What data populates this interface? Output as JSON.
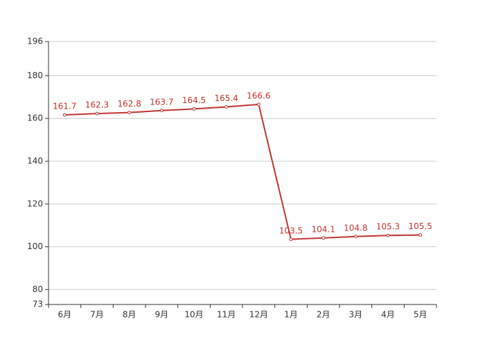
{
  "chart_data": {
    "type": "line",
    "categories": [
      "6月",
      "7月",
      "8月",
      "9月",
      "10月",
      "11月",
      "12月",
      "1月",
      "2月",
      "3月",
      "4月",
      "5月"
    ],
    "values": [
      161.7,
      162.3,
      162.8,
      163.7,
      164.5,
      165.4,
      166.6,
      103.5,
      104.1,
      104.8,
      105.3,
      105.5
    ],
    "color": "#c23531",
    "ylim": [
      73,
      196
    ],
    "yticks": [
      73,
      80,
      100,
      120,
      140,
      160,
      180,
      196
    ],
    "grid": true
  }
}
